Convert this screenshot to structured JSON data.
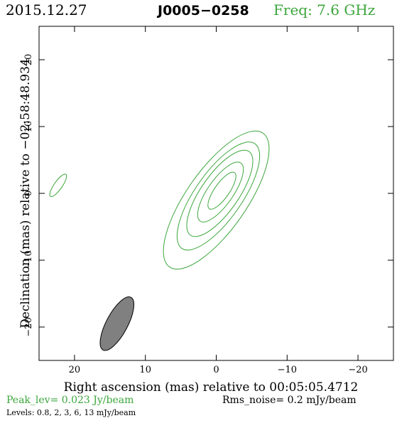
{
  "header": {
    "date": "2015.12.27",
    "source": "J0005−0258",
    "freq": "Freq: 7.6 GHz"
  },
  "colors": {
    "contour": "#3ca63c",
    "freq_text": "#3ca63c",
    "peak_text": "#3ca63c",
    "beam_fill": "#808080",
    "axes": "#000000"
  },
  "chart_data": {
    "type": "contour",
    "xlabel": "Right ascension (mas) relative to 00:05:05.4712",
    "ylabel": "Declination (mas) relative to −02:58:48.934",
    "xlim": [
      25,
      -25
    ],
    "ylim": [
      -25,
      25
    ],
    "x_ticks": [
      20,
      10,
      0,
      -10,
      -20
    ],
    "x_tick_labels": [
      "20",
      "10",
      "0",
      "−10",
      "−20"
    ],
    "y_ticks": [
      20,
      10,
      0,
      -10,
      -20
    ],
    "y_tick_labels": [
      "20",
      "10",
      "0",
      "−10",
      "−20"
    ],
    "contour_levels_mJy_per_beam": [
      0.8,
      2,
      3,
      6,
      13
    ],
    "contours": [
      {
        "level": 0.8,
        "center": [
          0.0,
          -1.0
        ],
        "semi_major": 11.5,
        "semi_minor": 4.5,
        "pa_deg": 35
      },
      {
        "level": 2,
        "center": [
          -0.3,
          -0.4
        ],
        "semi_major": 9.0,
        "semi_minor": 3.5,
        "pa_deg": 35
      },
      {
        "level": 3,
        "center": [
          -0.5,
          0.0
        ],
        "semi_major": 7.2,
        "semi_minor": 2.8,
        "pa_deg": 35
      },
      {
        "level": 6,
        "center": [
          -0.6,
          0.2
        ],
        "semi_major": 5.0,
        "semi_minor": 1.9,
        "pa_deg": 35
      },
      {
        "level": 13,
        "center": [
          -0.8,
          0.4
        ],
        "semi_major": 3.1,
        "semi_minor": 1.1,
        "pa_deg": 35
      },
      {
        "level": 0.8,
        "center": [
          22.3,
          1.2
        ],
        "semi_major": 1.9,
        "semi_minor": 0.6,
        "pa_deg": 35
      }
    ],
    "beam": {
      "center": [
        14.0,
        -19.5
      ],
      "semi_major": 4.2,
      "semi_minor": 1.6,
      "pa_deg": 28
    }
  },
  "footer": {
    "peak": "Peak_lev=  0.023 Jy/beam",
    "rms": "Rms_noise=   0.2 mJy/beam",
    "levels": "Levels: 0.8,    2,    3,    6,   13 mJy/beam"
  }
}
